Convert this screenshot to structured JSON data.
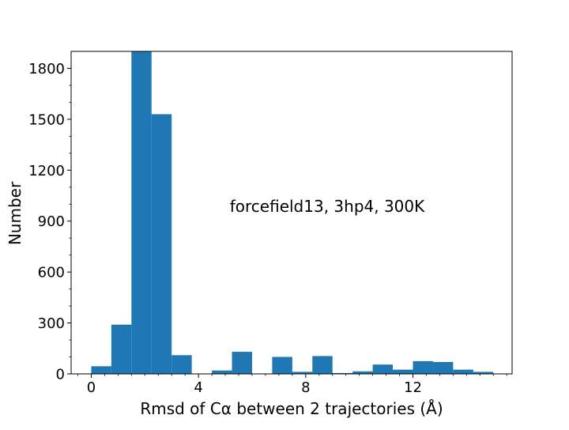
{
  "chart_data": {
    "type": "bar",
    "subtype": "histogram",
    "title": "",
    "xlabel": "Rmsd of Cα between 2 trajectories (Å)",
    "ylabel": "Number",
    "annotation": "forcefield13, 3hp4, 300K",
    "xlim": [
      -0.75,
      15.7
    ],
    "ylim": [
      0,
      1900
    ],
    "x_ticks": [
      0,
      4,
      8,
      12
    ],
    "x_tick_labels": [
      "0",
      "4",
      "8",
      "12"
    ],
    "y_ticks": [
      0,
      300,
      600,
      900,
      1200,
      1500,
      1800
    ],
    "y_tick_labels": [
      "0",
      "300",
      "600",
      "900",
      "1200",
      "1500",
      "1800"
    ],
    "grid": false,
    "bar_color": "#1f77b4",
    "bins": [
      {
        "start": 0.0,
        "end": 0.75,
        "count": 45
      },
      {
        "start": 0.75,
        "end": 1.5,
        "count": 290
      },
      {
        "start": 1.5,
        "end": 2.25,
        "count": 1900
      },
      {
        "start": 2.25,
        "end": 3.0,
        "count": 1530
      },
      {
        "start": 3.0,
        "end": 3.75,
        "count": 110
      },
      {
        "start": 3.75,
        "end": 4.5,
        "count": 0
      },
      {
        "start": 4.5,
        "end": 5.25,
        "count": 20
      },
      {
        "start": 5.25,
        "end": 6.0,
        "count": 130
      },
      {
        "start": 6.0,
        "end": 6.75,
        "count": 0
      },
      {
        "start": 6.75,
        "end": 7.5,
        "count": 100
      },
      {
        "start": 7.5,
        "end": 8.25,
        "count": 12
      },
      {
        "start": 8.25,
        "end": 9.0,
        "count": 105
      },
      {
        "start": 9.0,
        "end": 9.75,
        "count": 5
      },
      {
        "start": 9.75,
        "end": 10.5,
        "count": 15
      },
      {
        "start": 10.5,
        "end": 11.25,
        "count": 55
      },
      {
        "start": 11.25,
        "end": 12.0,
        "count": 25
      },
      {
        "start": 12.0,
        "end": 12.75,
        "count": 75
      },
      {
        "start": 12.75,
        "end": 13.5,
        "count": 70
      },
      {
        "start": 13.5,
        "end": 14.25,
        "count": 25
      },
      {
        "start": 14.25,
        "end": 15.0,
        "count": 12
      }
    ]
  }
}
